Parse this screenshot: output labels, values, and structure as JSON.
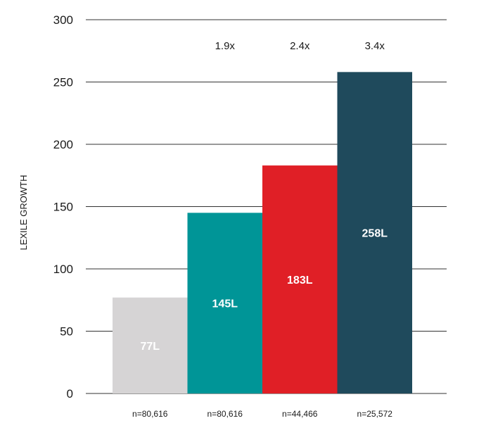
{
  "chart_data": {
    "type": "bar",
    "ylabel": "LEXILE GROWTH",
    "ylim": [
      0,
      300
    ],
    "yticks": [
      "0",
      "50",
      "100",
      "150",
      "200",
      "250",
      "300"
    ],
    "grid": true,
    "categories": [
      "n=80,616",
      "n=80,616",
      "n=44,466",
      "n=25,572"
    ],
    "values": [
      77,
      145,
      183,
      258
    ],
    "bar_labels": [
      "77L",
      "145L",
      "183L",
      "258L"
    ],
    "multipliers": [
      "",
      "1.9x",
      "2.4x",
      "3.4x"
    ],
    "colors": [
      "#d6d4d5",
      "#009597",
      "#e01f26",
      "#1f4a5c"
    ]
  }
}
